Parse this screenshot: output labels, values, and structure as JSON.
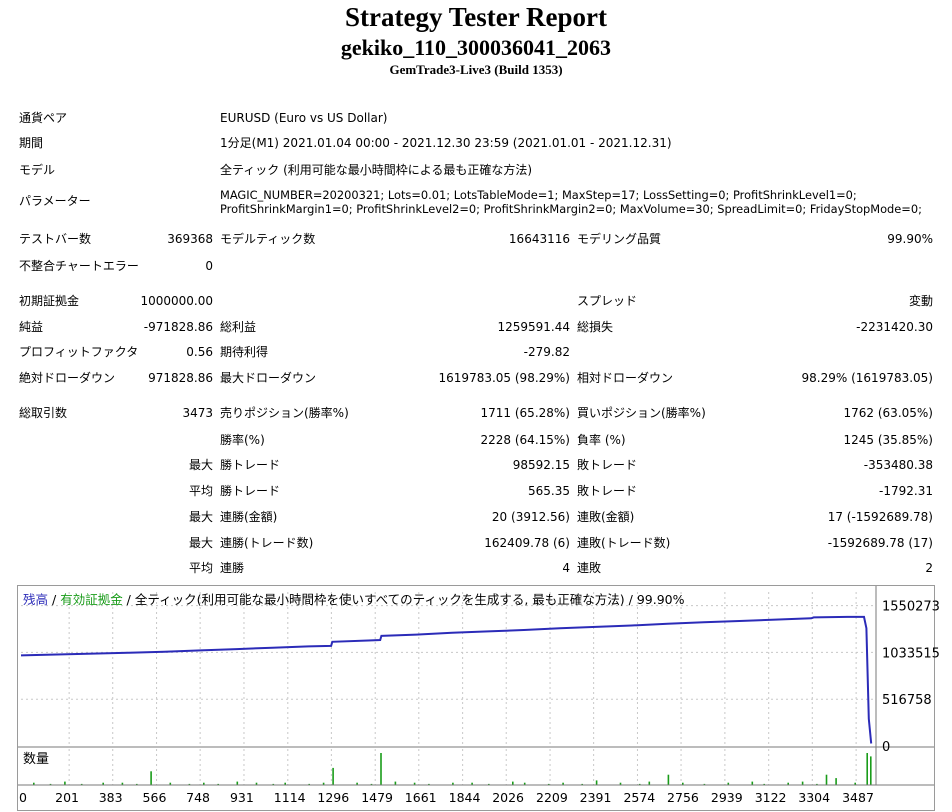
{
  "header": {
    "title": "Strategy Tester Report",
    "subtitle": "gekiko_110_300036041_2063",
    "build": "GemTrade3-Live3 (Build 1353)"
  },
  "info": {
    "symbol_label": "通貨ペア",
    "symbol_value": "EURUSD (Euro vs US Dollar)",
    "period_label": "期間",
    "period_value": "1分足(M1) 2021.01.04 00:00 - 2021.12.30 23:59 (2021.01.01 - 2021.12.31)",
    "model_label": "モデル",
    "model_value": "全ティック (利用可能な最小時間枠による最も正確な方法)",
    "params_label": "パラメーター",
    "params_line1": "MAGIC_NUMBER=20200321; Lots=0.01; LotsTableMode=1; MaxStep=17; LossSetting=0; ProfitShrinkLevel1=0;",
    "params_line2": "ProfitShrinkMargin1=0; ProfitShrinkLevel2=0; ProfitShrinkMargin2=0; MaxVolume=30; SpreadLimit=0; FridayStopMode=0;"
  },
  "stats": {
    "bars_label": "テストバー数",
    "bars_value": "369368",
    "ticks_label": "モデルティック数",
    "ticks_value": "16643116",
    "quality_label": "モデリング品質",
    "quality_value": "99.90%",
    "mismatch_label": "不整合チャートエラー",
    "mismatch_value": "0",
    "deposit_label": "初期証拠金",
    "deposit_value": "1000000.00",
    "spread_label": "スプレッド",
    "spread_value": "変動",
    "netprofit_label": "純益",
    "netprofit_value": "-971828.86",
    "grossprofit_label": "総利益",
    "grossprofit_value": "1259591.44",
    "grossloss_label": "総損失",
    "grossloss_value": "-2231420.30",
    "pf_label": "プロフィットファクタ",
    "pf_value": "0.56",
    "expected_label": "期待利得",
    "expected_value": "-279.82",
    "absdd_label": "絶対ドローダウン",
    "absdd_value": "971828.86",
    "maxdd_label": "最大ドローダウン",
    "maxdd_value": "1619783.05 (98.29%)",
    "reldd_label": "相対ドローダウン",
    "reldd_value": "98.29% (1619783.05)",
    "trades_label": "総取引数",
    "trades_value": "3473",
    "short_label": "売りポジション(勝率%)",
    "short_value": "1711 (65.28%)",
    "long_label": "買いポジション(勝率%)",
    "long_value": "1762 (63.05%)",
    "winrate_label": "勝率(%)",
    "winrate_value": "2228 (64.15%)",
    "lossrate_label": "負率 (%)",
    "lossrate_value": "1245 (35.85%)",
    "max_label": "最大",
    "avg_label": "平均",
    "maxwin_label": "勝トレード",
    "maxwin_value": "98592.15",
    "maxloss_label": "敗トレード",
    "maxloss_value": "-353480.38",
    "avgwin_label": "勝トレード",
    "avgwin_value": "565.35",
    "avgloss_label": "敗トレード",
    "avgloss_value": "-1792.31",
    "maxconswin_label": "連勝(金額)",
    "maxconswin_value": "20 (3912.56)",
    "maxconsloss_label": "連敗(金額)",
    "maxconsloss_value": "17 (-1592689.78)",
    "maxconswin2_label": "連勝(トレード数)",
    "maxconswin2_value": "162409.78 (6)",
    "maxconsloss2_label": "連敗(トレード数)",
    "maxconsloss2_value": "-1592689.78 (17)",
    "avgconswin_label": "連勝",
    "avgconswin_value": "4",
    "avgconsloss_label": "連敗",
    "avgconsloss_value": "2"
  },
  "chart_data": {
    "type": "line",
    "legend_balance": "残高",
    "legend_sep1": " / ",
    "legend_equity": "有効証拠金",
    "legend_rest": " / 全ティック(利用可能な最小時間枠を使いすべてのティックを生成する, 最も正確な方法) / 99.90%",
    "volume_label": "数量",
    "y_ticks": [
      "1550273",
      "1033515",
      "516758",
      "0"
    ],
    "y_tick_values": [
      1550273,
      1033515,
      516758,
      0
    ],
    "ylim": [
      0,
      1700000
    ],
    "x_ticks": [
      "0",
      "201",
      "383",
      "566",
      "748",
      "931",
      "1114",
      "1296",
      "1479",
      "1661",
      "1844",
      "2026",
      "2209",
      "2391",
      "2574",
      "2756",
      "2939",
      "3122",
      "3304",
      "3487"
    ],
    "xlim": [
      0,
      3570
    ],
    "balance_color": "#2b2bb8",
    "equity_color": "#1a9c1a",
    "grid": true,
    "series": [
      {
        "name": "残高",
        "x": [
          0,
          150,
          300,
          450,
          600,
          750,
          900,
          1050,
          1200,
          1295,
          1300,
          1450,
          1500,
          1505,
          1650,
          1800,
          1950,
          2100,
          2250,
          2400,
          2550,
          2700,
          2850,
          3000,
          3150,
          3300,
          3310,
          3450,
          3520,
          3530,
          3540,
          3550
        ],
        "values": [
          1000000,
          1010000,
          1020000,
          1030000,
          1040000,
          1055000,
          1070000,
          1085000,
          1100000,
          1105000,
          1150000,
          1165000,
          1170000,
          1215000,
          1230000,
          1250000,
          1265000,
          1280000,
          1300000,
          1315000,
          1330000,
          1350000,
          1365000,
          1380000,
          1395000,
          1410000,
          1420000,
          1425000,
          1425000,
          1300000,
          300000,
          28000
        ]
      }
    ],
    "volume_x": [
      50,
      120,
      180,
      250,
      340,
      420,
      480,
      540,
      620,
      700,
      760,
      820,
      900,
      980,
      1050,
      1100,
      1200,
      1260,
      1300,
      1400,
      1460,
      1500,
      1560,
      1640,
      1700,
      1800,
      1880,
      1950,
      2050,
      2100,
      2200,
      2260,
      2340,
      2400,
      2500,
      2580,
      2620,
      2700,
      2760,
      2850,
      2950,
      3050,
      3100,
      3200,
      3260,
      3320,
      3360,
      3400,
      3480,
      3530,
      3545
    ],
    "volume_values": [
      2,
      1,
      3,
      1,
      2,
      2,
      1,
      12,
      2,
      1,
      2,
      1,
      3,
      2,
      1,
      2,
      1,
      2,
      15,
      2,
      1,
      28,
      3,
      2,
      1,
      2,
      2,
      1,
      3,
      2,
      1,
      2,
      1,
      4,
      2,
      1,
      3,
      9,
      2,
      1,
      2,
      3,
      1,
      2,
      3,
      1,
      9,
      6,
      2,
      28,
      25
    ]
  }
}
